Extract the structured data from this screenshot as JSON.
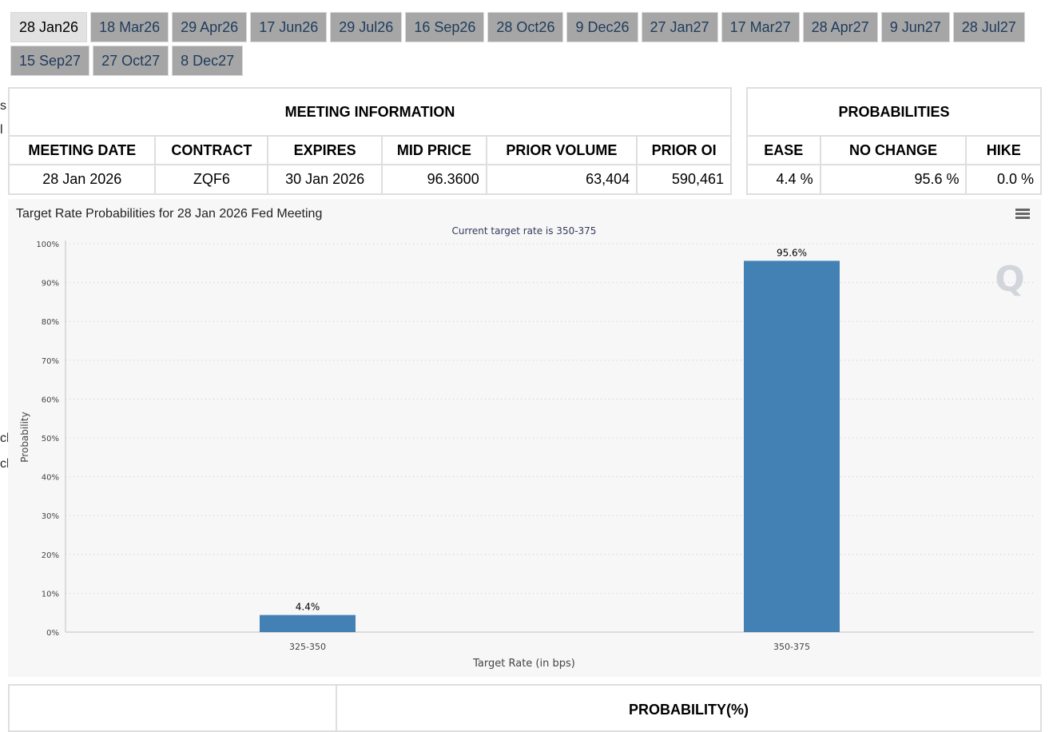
{
  "tabs": {
    "row1": [
      "28 Jan26",
      "18 Mar26",
      "29 Apr26",
      "17 Jun26",
      "29 Jul26",
      "16 Sep26",
      "28 Oct26",
      "9 Dec26",
      "27 Jan27",
      "17 Mar27",
      "28 Apr27",
      "9 Jun27",
      "28 Jul27"
    ],
    "row2": [
      "15 Sep27",
      "27 Oct27",
      "8 Dec27"
    ],
    "active": "28 Jan26"
  },
  "edge_text": [
    "s",
    "l",
    "ch",
    "ch"
  ],
  "meeting_info": {
    "title": "MEETING INFORMATION",
    "headers": [
      "MEETING DATE",
      "CONTRACT",
      "EXPIRES",
      "MID PRICE",
      "PRIOR VOLUME",
      "PRIOR OI"
    ],
    "values": [
      "28 Jan 2026",
      "ZQF6",
      "30 Jan 2026",
      "96.3600",
      "63,404",
      "590,461"
    ]
  },
  "probabilities": {
    "title": "PROBABILITIES",
    "headers": [
      "EASE",
      "NO CHANGE",
      "HIKE"
    ],
    "values": [
      "4.4 %",
      "95.6 %",
      "0.0 %"
    ]
  },
  "chart": {
    "title": "Target Rate Probabilities for 28 Jan 2026 Fed Meeting",
    "subtitle": "Current target rate is 350-375",
    "watermark": "Q",
    "bar_color": "#4380b4"
  },
  "chart_data": {
    "type": "bar",
    "title": "Target Rate Probabilities for 28 Jan 2026 Fed Meeting",
    "subtitle": "Current target rate is 350-375",
    "categories": [
      "325-350",
      "350-375"
    ],
    "values": [
      4.4,
      95.6
    ],
    "data_labels": [
      "4.4%",
      "95.6%"
    ],
    "xlabel": "Target Rate (in bps)",
    "ylabel": "Probability",
    "ylim": [
      0,
      100
    ],
    "yticks": [
      "0%",
      "10%",
      "20%",
      "30%",
      "40%",
      "50%",
      "60%",
      "70%",
      "80%",
      "90%",
      "100%"
    ],
    "grid": true
  },
  "bottom": {
    "title": "PROBABILITY(%)"
  }
}
